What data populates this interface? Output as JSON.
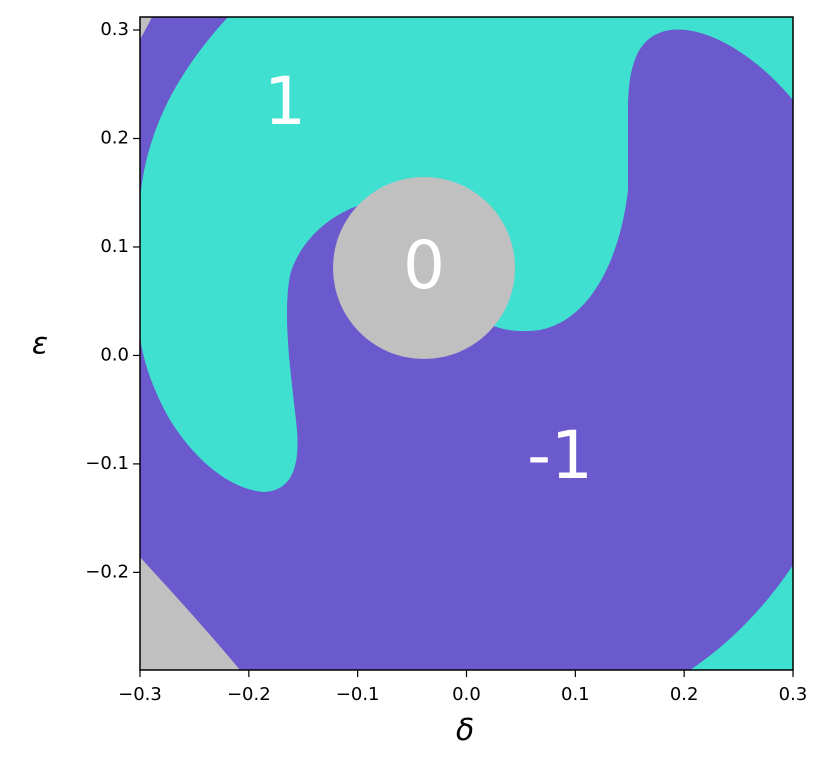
{
  "chart_data": {
    "type": "region",
    "x_label": "δ",
    "y_label": "ε",
    "xlim": [
      -0.3,
      0.3
    ],
    "ylim": [
      -0.29,
      0.312
    ],
    "xticks": [
      {
        "value": -0.3,
        "label": "−0.3"
      },
      {
        "value": -0.2,
        "label": "−0.2"
      },
      {
        "value": -0.1,
        "label": "−0.1"
      },
      {
        "value": 0,
        "label": "0.0"
      },
      0.1,
      0.2,
      0.3
    ],
    "yticks": [
      {
        "value": -0.2,
        "label": "−0.2"
      },
      {
        "value": -0.1,
        "label": "−0.1"
      },
      {
        "value": 0,
        "label": "0.0"
      },
      0.1,
      0.2,
      0.3
    ],
    "regions": [
      {
        "label": "1",
        "color": "#40e0d0"
      },
      {
        "label": "0",
        "color": "#c0c0c0"
      },
      {
        "label": "-1",
        "color": "#6a5acd"
      }
    ]
  }
}
